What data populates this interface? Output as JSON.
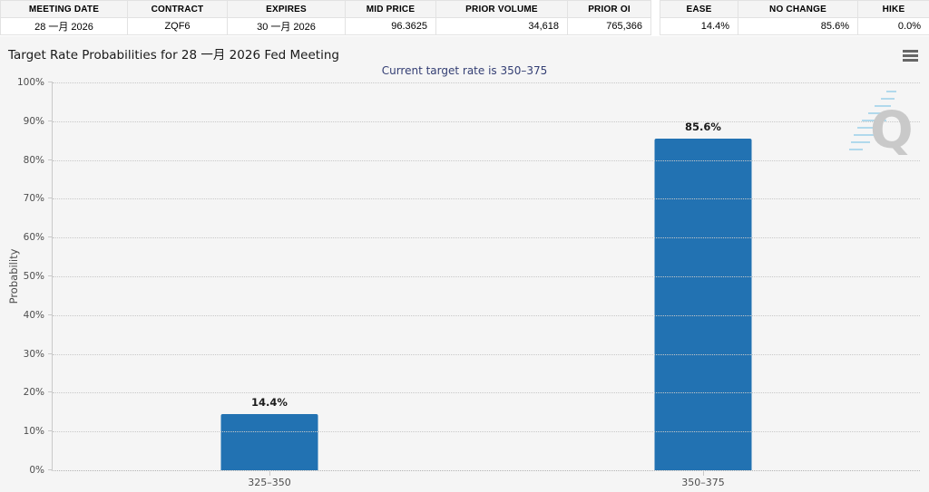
{
  "tables": {
    "contract": {
      "headers": [
        "MEETING DATE",
        "CONTRACT",
        "EXPIRES",
        "MID PRICE",
        "PRIOR VOLUME",
        "PRIOR OI"
      ],
      "values": [
        "28 一月 2026",
        "ZQF6",
        "30 一月 2026",
        "96.3625",
        "34,618",
        "765,366"
      ]
    },
    "summary": {
      "headers": [
        "EASE",
        "NO CHANGE",
        "HIKE"
      ],
      "values": [
        "14.4%",
        "85.6%",
        "0.0%"
      ]
    }
  },
  "chart": {
    "menu_icon": "hamburger-icon",
    "watermark_letter": "Q"
  },
  "chart_data": {
    "type": "bar",
    "title": "Target Rate Probabilities for 28 一月 2026 Fed Meeting",
    "subtitle": "Current target rate is 350–375",
    "categories": [
      "325–350",
      "350–375"
    ],
    "values": [
      14.4,
      85.6
    ],
    "bar_labels": [
      "14.4%",
      "85.6%"
    ],
    "xlabel": "",
    "ylabel": "Probability",
    "ylim": [
      0,
      100
    ],
    "ytick_labels": [
      "0%",
      "10%",
      "20%",
      "30%",
      "40%",
      "50%",
      "60%",
      "70%",
      "80%",
      "90%",
      "100%"
    ],
    "grid": "horizontal-dotted",
    "legend": "none",
    "bar_color": "#2272b2",
    "subtitle_color": "#333e73",
    "background_color": "#f5f5f5"
  }
}
